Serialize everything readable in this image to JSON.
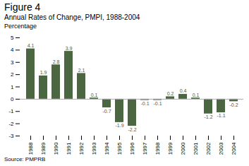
{
  "chart_data": {
    "type": "bar",
    "title": "Figure 4",
    "subtitle": "Annual Rates of Change, PMPI, 1988-2004",
    "ylabel": "Percentage",
    "source": "Source: PMPRB",
    "categories": [
      "1988",
      "1989",
      "1990",
      "1991",
      "1992",
      "1993",
      "1994",
      "1995",
      "1996",
      "1997",
      "1998",
      "1999",
      "2000",
      "2001",
      "2002",
      "2003",
      "2004"
    ],
    "values": [
      4.1,
      1.9,
      2.8,
      3.9,
      2.1,
      0.1,
      -0.7,
      -1.9,
      -2.2,
      -0.1,
      -0.1,
      0.2,
      0.4,
      0.1,
      -1.2,
      -1.1,
      -0.2
    ],
    "color": "#4a6741",
    "ylim": [
      -3,
      5
    ],
    "yticks": [
      -3,
      -2,
      -1,
      0,
      1,
      2,
      3,
      4,
      5
    ],
    "grid": false,
    "data_labels": true
  }
}
